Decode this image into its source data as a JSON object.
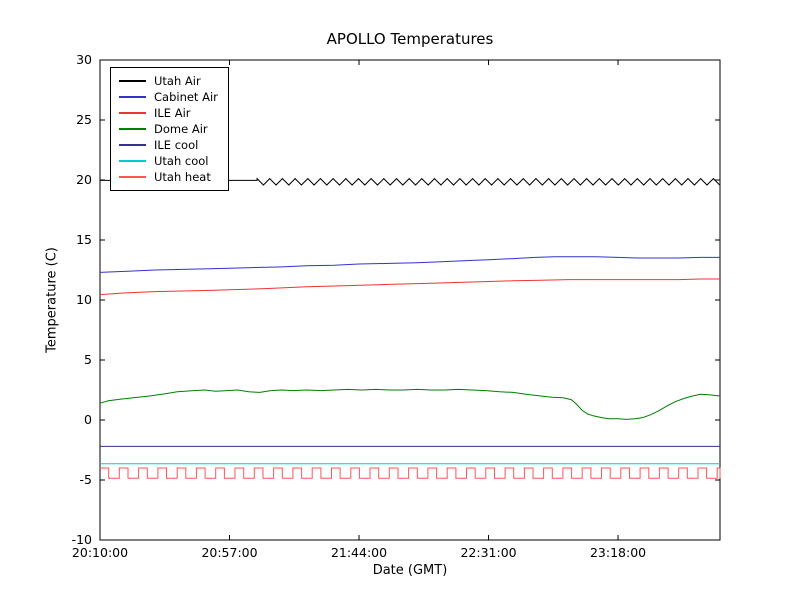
{
  "chart_data": {
    "type": "line",
    "title": "APOLLO Temperatures",
    "xlabel": "Date (GMT)",
    "ylabel": "Temperature (C)",
    "xlim": [
      0,
      225
    ],
    "ylim": [
      -10,
      30
    ],
    "x_unit": "minutes since 20:10:00",
    "grid": false,
    "legend_position": "upper left",
    "x_ticks": [
      {
        "t": 0,
        "label": "20:10:00"
      },
      {
        "t": 47,
        "label": "20:57:00"
      },
      {
        "t": 94,
        "label": "21:44:00"
      },
      {
        "t": 141,
        "label": "22:31:00"
      },
      {
        "t": 188,
        "label": "23:18:00"
      }
    ],
    "y_ticks": [
      -10,
      -5,
      0,
      5,
      10,
      15,
      20,
      25,
      30
    ],
    "series": [
      {
        "name": "Utah Air",
        "color": "#000000",
        "parts": [
          {
            "type": "points",
            "data": [
              [
                0,
                19.97
              ],
              [
                57,
                19.97
              ]
            ]
          },
          {
            "type": "triangle",
            "t0": 57,
            "t1": 225,
            "mid": 19.85,
            "amp": 0.27,
            "period": 4.6
          }
        ]
      },
      {
        "name": "Cabinet Air",
        "color": "#3333cc",
        "parts": [
          {
            "type": "points",
            "data": [
              [
                0,
                12.3
              ],
              [
                10,
                12.4
              ],
              [
                20,
                12.5
              ],
              [
                30,
                12.55
              ],
              [
                40,
                12.6
              ],
              [
                47,
                12.65
              ],
              [
                55,
                12.7
              ],
              [
                65,
                12.75
              ],
              [
                75,
                12.85
              ],
              [
                85,
                12.9
              ],
              [
                94,
                13.0
              ],
              [
                105,
                13.05
              ],
              [
                115,
                13.1
              ],
              [
                125,
                13.2
              ],
              [
                135,
                13.3
              ],
              [
                141,
                13.35
              ],
              [
                150,
                13.45
              ],
              [
                158,
                13.55
              ],
              [
                165,
                13.6
              ],
              [
                172,
                13.6
              ],
              [
                180,
                13.6
              ],
              [
                188,
                13.55
              ],
              [
                195,
                13.5
              ],
              [
                203,
                13.5
              ],
              [
                210,
                13.5
              ],
              [
                218,
                13.55
              ],
              [
                225,
                13.55
              ]
            ]
          }
        ]
      },
      {
        "name": "ILE Air",
        "color": "#ee3333",
        "parts": [
          {
            "type": "points",
            "data": [
              [
                0,
                10.45
              ],
              [
                10,
                10.6
              ],
              [
                20,
                10.7
              ],
              [
                30,
                10.75
              ],
              [
                40,
                10.8
              ],
              [
                47,
                10.85
              ],
              [
                60,
                10.95
              ],
              [
                75,
                11.1
              ],
              [
                90,
                11.2
              ],
              [
                105,
                11.3
              ],
              [
                120,
                11.4
              ],
              [
                135,
                11.5
              ],
              [
                150,
                11.6
              ],
              [
                160,
                11.65
              ],
              [
                170,
                11.7
              ],
              [
                180,
                11.7
              ],
              [
                188,
                11.7
              ],
              [
                200,
                11.7
              ],
              [
                210,
                11.7
              ],
              [
                218,
                11.75
              ],
              [
                225,
                11.75
              ]
            ]
          }
        ]
      },
      {
        "name": "Dome Air",
        "color": "#007f00",
        "parts": [
          {
            "type": "points",
            "data": [
              [
                0,
                1.4
              ],
              [
                3,
                1.6
              ],
              [
                8,
                1.75
              ],
              [
                12,
                1.85
              ],
              [
                18,
                2.0
              ],
              [
                24,
                2.2
              ],
              [
                28,
                2.35
              ],
              [
                34,
                2.45
              ],
              [
                38,
                2.5
              ],
              [
                42,
                2.4
              ],
              [
                46,
                2.45
              ],
              [
                50,
                2.5
              ],
              [
                54,
                2.35
              ],
              [
                58,
                2.3
              ],
              [
                62,
                2.45
              ],
              [
                66,
                2.5
              ],
              [
                70,
                2.45
              ],
              [
                75,
                2.5
              ],
              [
                80,
                2.45
              ],
              [
                85,
                2.5
              ],
              [
                90,
                2.55
              ],
              [
                95,
                2.5
              ],
              [
                100,
                2.55
              ],
              [
                105,
                2.5
              ],
              [
                110,
                2.5
              ],
              [
                115,
                2.55
              ],
              [
                120,
                2.5
              ],
              [
                125,
                2.5
              ],
              [
                130,
                2.55
              ],
              [
                135,
                2.5
              ],
              [
                140,
                2.45
              ],
              [
                145,
                2.35
              ],
              [
                150,
                2.3
              ],
              [
                153,
                2.2
              ],
              [
                156,
                2.1
              ],
              [
                160,
                2.0
              ],
              [
                164,
                1.9
              ],
              [
                168,
                1.85
              ],
              [
                171,
                1.7
              ],
              [
                173,
                1.3
              ],
              [
                175,
                0.8
              ],
              [
                177,
                0.5
              ],
              [
                179,
                0.35
              ],
              [
                182,
                0.2
              ],
              [
                185,
                0.1
              ],
              [
                188,
                0.1
              ],
              [
                191,
                0.05
              ],
              [
                194,
                0.1
              ],
              [
                197,
                0.2
              ],
              [
                200,
                0.45
              ],
              [
                203,
                0.8
              ],
              [
                206,
                1.2
              ],
              [
                209,
                1.55
              ],
              [
                212,
                1.8
              ],
              [
                215,
                2.0
              ],
              [
                218,
                2.15
              ],
              [
                221,
                2.1
              ],
              [
                225,
                2.0
              ]
            ]
          }
        ]
      },
      {
        "name": "ILE cool",
        "color": "#333388",
        "parts": [
          {
            "type": "points",
            "data": [
              [
                0,
                -2.2
              ],
              [
                225,
                -2.2
              ]
            ]
          }
        ]
      },
      {
        "name": "Utah cool",
        "color": "#00cccc",
        "parts": [
          {
            "type": "points",
            "data": [
              [
                0,
                -3.65
              ],
              [
                225,
                -3.65
              ]
            ]
          }
        ]
      },
      {
        "name": "Utah heat",
        "color": "#ff5555",
        "parts": [
          {
            "type": "square",
            "t0": 0,
            "t1": 225,
            "high": -4.0,
            "low": -4.85,
            "period": 7,
            "duty": 0.45
          }
        ]
      }
    ]
  }
}
